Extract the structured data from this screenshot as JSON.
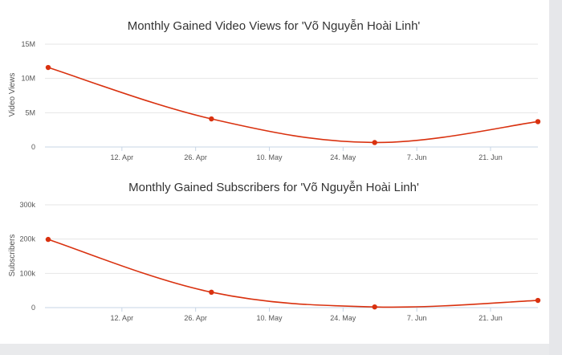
{
  "colors": {
    "series": "#d9310f",
    "grid": "#e6e6e6",
    "axis": "#c7d5e5",
    "page": "#ffffff",
    "frame": "#e9eaec"
  },
  "chart_data": [
    {
      "type": "line",
      "title": "Monthly Gained Video Views for 'Võ Nguyễn Hoài Linh'",
      "ylabel": "Video Views",
      "xlabel": "",
      "x_ticks": [
        "12. Apr",
        "26. Apr",
        "10. May",
        "24. May",
        "7. Jun",
        "21. Jun"
      ],
      "y_ticks": [
        "0",
        "5M",
        "10M",
        "15M"
      ],
      "ylim": [
        0,
        15000000
      ],
      "grid": true,
      "legend": "none",
      "points": [
        {
          "x": "2023-03-29",
          "y": 11600000
        },
        {
          "x": "2023-04-29",
          "y": 4100000
        },
        {
          "x": "2023-05-30",
          "y": 650000
        },
        {
          "x": "2023-06-30",
          "y": 3700000
        }
      ]
    },
    {
      "type": "line",
      "title": "Monthly Gained Subscribers for 'Võ Nguyễn Hoài Linh'",
      "ylabel": "Subscribers",
      "xlabel": "",
      "x_ticks": [
        "12. Apr",
        "26. Apr",
        "10. May",
        "24. May",
        "7. Jun",
        "21. Jun"
      ],
      "y_ticks": [
        "0",
        "100k",
        "200k",
        "300k"
      ],
      "ylim": [
        0,
        300000
      ],
      "grid": true,
      "legend": "none",
      "points": [
        {
          "x": "2023-03-29",
          "y": 199000
        },
        {
          "x": "2023-04-29",
          "y": 45000
        },
        {
          "x": "2023-05-30",
          "y": 2000
        },
        {
          "x": "2023-06-30",
          "y": 21000
        }
      ]
    }
  ]
}
